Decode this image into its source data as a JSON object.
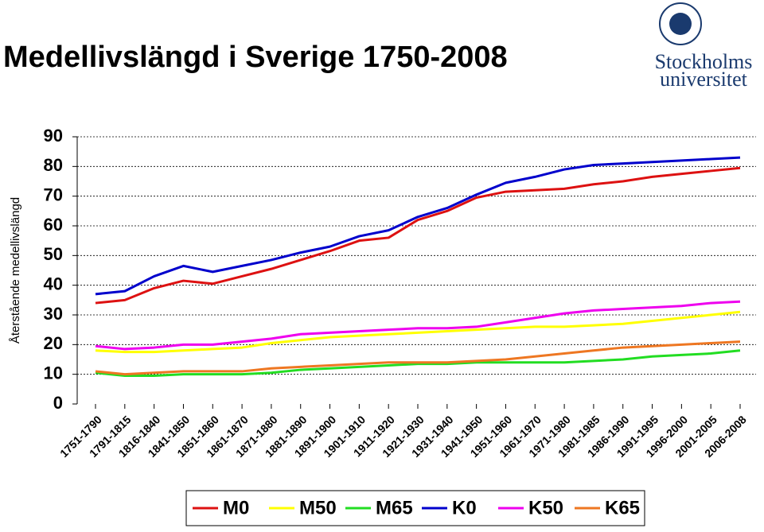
{
  "header": {
    "title": "Medellivslängd i Sverige 1750-2008",
    "logo": [
      "Stockholms",
      "universitet"
    ]
  },
  "chart_data": {
    "type": "line",
    "y_label": "Återstående medellivslängd",
    "categories": [
      "1751-1790",
      "1791-1815",
      "1816-1840",
      "1841-1850",
      "1851-1860",
      "1861-1870",
      "1871-1880",
      "1881-1890",
      "1891-1900",
      "1901-1910",
      "1911-1920",
      "1921-1930",
      "1931-1940",
      "1941-1950",
      "1951-1960",
      "1961-1970",
      "1971-1980",
      "1981-1985",
      "1986-1990",
      "1991-1995",
      "1996-2000",
      "2001-2005",
      "2006-2008"
    ],
    "series": [
      {
        "name": "M0",
        "color": "#dd1111",
        "values": [
          34,
          35,
          39,
          41.5,
          40.5,
          43,
          45.5,
          48.5,
          51.5,
          55,
          56,
          62,
          65,
          69.5,
          71.5,
          72,
          72.5,
          74,
          75,
          76.5,
          77.5,
          78.5,
          79.5
        ]
      },
      {
        "name": "M50",
        "color": "#ffff00",
        "values": [
          18,
          17.5,
          17.5,
          18,
          18.5,
          19,
          20.5,
          21.5,
          22.5,
          23,
          23.5,
          24,
          24.5,
          25,
          25.5,
          26,
          26,
          26.5,
          27,
          28,
          29,
          30,
          31
        ]
      },
      {
        "name": "M65",
        "color": "#22dd22",
        "values": [
          10.5,
          9.5,
          9.5,
          10,
          10,
          10,
          10.5,
          11.5,
          12,
          12.5,
          13,
          13.5,
          13.5,
          14,
          14,
          14,
          14,
          14.5,
          15,
          16,
          16.5,
          17,
          18
        ]
      },
      {
        "name": "K0",
        "color": "#0000cc",
        "values": [
          37,
          38,
          43,
          46.5,
          44.5,
          46.5,
          48.5,
          51,
          53,
          56.5,
          58.5,
          63,
          66,
          70.5,
          74.5,
          76.5,
          79,
          80.5,
          81,
          81.5,
          82,
          82.5,
          83
        ]
      },
      {
        "name": "K50",
        "color": "#ee00ee",
        "values": [
          19.5,
          18.5,
          19,
          20,
          20,
          21,
          22,
          23.5,
          24,
          24.5,
          25,
          25.5,
          25.5,
          26,
          27.5,
          29,
          30.5,
          31.5,
          32,
          32.5,
          33,
          34,
          34.5
        ]
      },
      {
        "name": "K65",
        "color": "#ee7722",
        "values": [
          11,
          10,
          10.5,
          11,
          11,
          11,
          12,
          12.5,
          13,
          13.5,
          14,
          14,
          14,
          14.5,
          15,
          16,
          17,
          18,
          19,
          19.5,
          20,
          20.5,
          21
        ]
      }
    ],
    "ylim": [
      0,
      90
    ],
    "yticks": [
      0,
      10,
      20,
      30,
      40,
      50,
      60,
      70,
      80,
      90
    ],
    "grid": true
  }
}
